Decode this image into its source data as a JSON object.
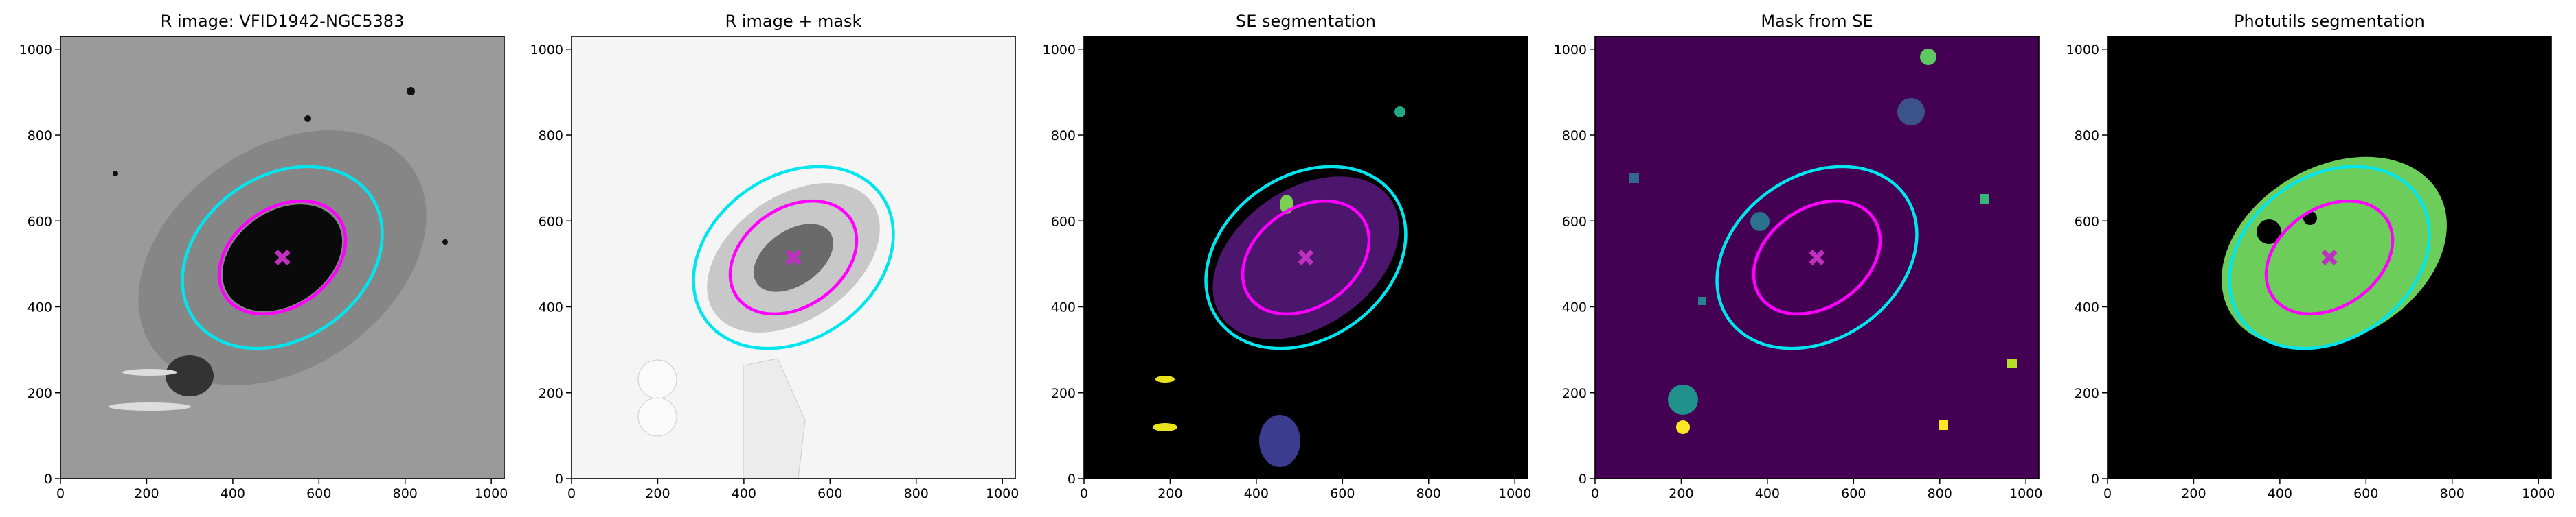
{
  "chart_data": [
    {
      "type": "image",
      "title": "R image: VFID1942-NGC5383",
      "background": "#9a9a9a",
      "xlim": [
        0,
        1030
      ],
      "ylim": [
        0,
        1030
      ],
      "xticks": [
        0,
        200,
        400,
        600,
        800,
        1000
      ],
      "yticks": [
        0,
        200,
        400,
        600,
        800,
        1000
      ],
      "ellipses": [
        {
          "color": "#00e5ee",
          "x": 515,
          "y": 515,
          "a": 250,
          "b": 190,
          "angle": 35
        },
        {
          "color": "#ff00ff",
          "x": 515,
          "y": 515,
          "a": 160,
          "b": 115,
          "angle": 35
        }
      ],
      "marker": {
        "x": 515,
        "y": 515,
        "color": "#c030c0"
      }
    },
    {
      "type": "image",
      "title": "R image + mask",
      "background": "#f5f5f5",
      "xlim": [
        0,
        1030
      ],
      "ylim": [
        0,
        1030
      ],
      "xticks": [
        0,
        200,
        400,
        600,
        800,
        1000
      ],
      "yticks": [
        0,
        200,
        400,
        600,
        800,
        1000
      ],
      "ellipses": [
        {
          "color": "#00e5ee",
          "x": 515,
          "y": 515,
          "a": 250,
          "b": 190,
          "angle": 35
        },
        {
          "color": "#ff00ff",
          "x": 515,
          "y": 515,
          "a": 160,
          "b": 115,
          "angle": 35
        }
      ],
      "marker": {
        "x": 515,
        "y": 515,
        "color": "#c030c0"
      }
    },
    {
      "type": "image",
      "title": "SE segmentation",
      "background": "#000000",
      "xlim": [
        0,
        1030
      ],
      "ylim": [
        0,
        1030
      ],
      "xticks": [
        0,
        200,
        400,
        600,
        800,
        1000
      ],
      "yticks": [
        0,
        200,
        400,
        600,
        800,
        1000
      ],
      "ellipses": [
        {
          "color": "#00e5ee",
          "x": 515,
          "y": 515,
          "a": 250,
          "b": 190,
          "angle": 35
        },
        {
          "color": "#ff00ff",
          "x": 515,
          "y": 515,
          "a": 160,
          "b": 115,
          "angle": 35
        }
      ],
      "marker": {
        "x": 515,
        "y": 515,
        "color": "#c030c0"
      }
    },
    {
      "type": "image",
      "title": "Mask from SE",
      "background": "#440154",
      "xlim": [
        0,
        1030
      ],
      "ylim": [
        0,
        1030
      ],
      "xticks": [
        0,
        200,
        400,
        600,
        800,
        1000
      ],
      "yticks": [
        0,
        200,
        400,
        600,
        800,
        1000
      ],
      "ellipses": [
        {
          "color": "#00e5ee",
          "x": 515,
          "y": 515,
          "a": 250,
          "b": 190,
          "angle": 35
        },
        {
          "color": "#ff00ff",
          "x": 515,
          "y": 515,
          "a": 160,
          "b": 115,
          "angle": 35
        }
      ],
      "marker": {
        "x": 515,
        "y": 515,
        "color": "#c030c0"
      }
    },
    {
      "type": "image",
      "title": "Photutils segmentation",
      "background": "#000000",
      "xlim": [
        0,
        1030
      ],
      "ylim": [
        0,
        1030
      ],
      "xticks": [
        0,
        200,
        400,
        600,
        800,
        1000
      ],
      "yticks": [
        0,
        200,
        400,
        600,
        800,
        1000
      ],
      "ellipses": [
        {
          "color": "#00e5ee",
          "x": 515,
          "y": 515,
          "a": 250,
          "b": 190,
          "angle": 35
        },
        {
          "color": "#ff00ff",
          "x": 515,
          "y": 515,
          "a": 160,
          "b": 115,
          "angle": 35
        }
      ],
      "marker": {
        "x": 515,
        "y": 515,
        "color": "#c030c0"
      }
    }
  ]
}
